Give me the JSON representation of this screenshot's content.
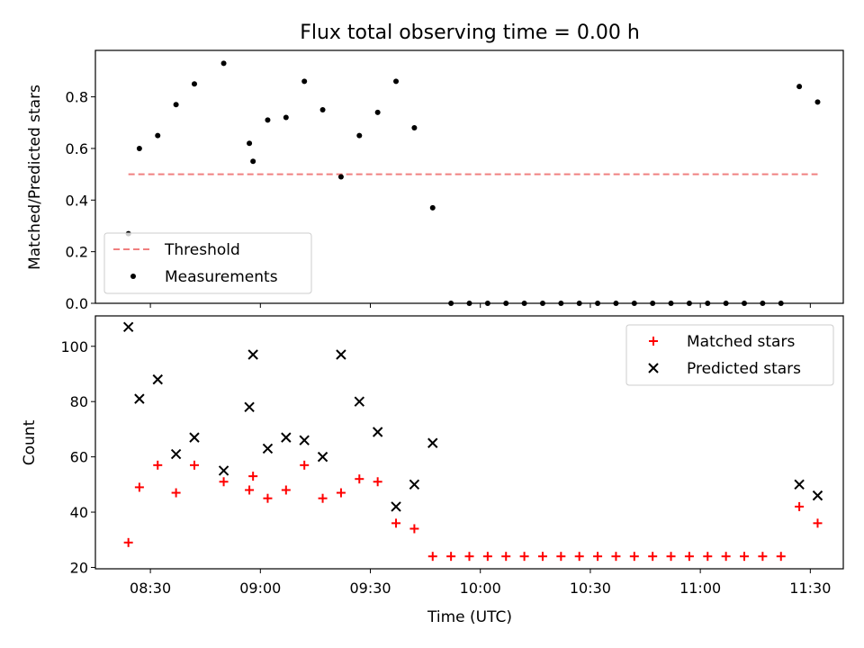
{
  "title": "Flux total observing time = 0.00 h",
  "colors": {
    "threshold": "#f08080",
    "matched": "#ff0000",
    "predicted": "#000000",
    "measurement": "#000000"
  },
  "chart_data": [
    {
      "type": "scatter",
      "ylabel": "Matched/Predicted stars",
      "xlabel": "",
      "ylim": [
        0,
        0.98
      ],
      "xlim": [
        "08:15",
        "11:39"
      ],
      "yticks": [
        "0.0",
        "0.2",
        "0.4",
        "0.6",
        "0.8"
      ],
      "grid": false,
      "legend_position": "lower-left",
      "threshold": {
        "name": "Threshold",
        "y": 0.5,
        "x_start": "08:24",
        "x_end": "11:32",
        "style": "dashed"
      },
      "series": [
        {
          "name": "Measurements",
          "marker": "dot",
          "x": [
            "08:24",
            "08:27",
            "08:32",
            "08:37",
            "08:42",
            "08:50",
            "08:57",
            "08:58",
            "09:02",
            "09:07",
            "09:12",
            "09:17",
            "09:22",
            "09:27",
            "09:32",
            "09:37",
            "09:42",
            "09:47",
            "09:52",
            "09:57",
            "10:02",
            "10:07",
            "10:12",
            "10:17",
            "10:22",
            "10:27",
            "10:32",
            "10:37",
            "10:42",
            "10:47",
            "10:52",
            "10:57",
            "11:02",
            "11:07",
            "11:12",
            "11:17",
            "11:22",
            "11:27",
            "11:32"
          ],
          "y": [
            0.27,
            0.6,
            0.65,
            0.77,
            0.85,
            0.93,
            0.62,
            0.55,
            0.71,
            0.72,
            0.86,
            0.75,
            0.49,
            0.65,
            0.74,
            0.86,
            0.68,
            0.37,
            0,
            0,
            0,
            0,
            0,
            0,
            0,
            0,
            0,
            0,
            0,
            0,
            0,
            0,
            0,
            0,
            0,
            0,
            0,
            0.84,
            0.78
          ]
        }
      ]
    },
    {
      "type": "scatter",
      "ylabel": "Count",
      "xlabel": "Time (UTC)",
      "ylim": [
        19.5,
        111
      ],
      "xlim": [
        "08:15",
        "11:39"
      ],
      "yticks": [
        "20",
        "40",
        "60",
        "80",
        "100"
      ],
      "xticks": [
        "08:30",
        "09:00",
        "09:30",
        "10:00",
        "10:30",
        "11:00",
        "11:30"
      ],
      "grid": false,
      "legend_position": "upper-right",
      "series": [
        {
          "name": "Matched stars",
          "marker": "plus",
          "x": [
            "08:24",
            "08:27",
            "08:32",
            "08:37",
            "08:42",
            "08:50",
            "08:57",
            "08:58",
            "09:02",
            "09:07",
            "09:12",
            "09:17",
            "09:22",
            "09:27",
            "09:32",
            "09:37",
            "09:42",
            "09:47",
            "09:52",
            "09:57",
            "10:02",
            "10:07",
            "10:12",
            "10:17",
            "10:22",
            "10:27",
            "10:32",
            "10:37",
            "10:42",
            "10:47",
            "10:52",
            "10:57",
            "11:02",
            "11:07",
            "11:12",
            "11:17",
            "11:22",
            "11:27",
            "11:32"
          ],
          "y": [
            29,
            49,
            57,
            47,
            57,
            51,
            48,
            53,
            45,
            48,
            57,
            45,
            47,
            52,
            51,
            36,
            34,
            24,
            24,
            24,
            24,
            24,
            24,
            24,
            24,
            24,
            24,
            24,
            24,
            24,
            24,
            24,
            24,
            24,
            24,
            24,
            24,
            42,
            36
          ]
        },
        {
          "name": "Predicted stars",
          "marker": "x",
          "x": [
            "08:24",
            "08:27",
            "08:32",
            "08:37",
            "08:42",
            "08:50",
            "08:57",
            "08:58",
            "09:02",
            "09:07",
            "09:12",
            "09:17",
            "09:22",
            "09:27",
            "09:32",
            "09:37",
            "09:42",
            "09:47",
            "11:27",
            "11:32"
          ],
          "y": [
            107,
            81,
            88,
            61,
            67,
            55,
            78,
            97,
            63,
            67,
            66,
            60,
            97,
            80,
            69,
            42,
            50,
            65,
            50,
            46
          ]
        }
      ]
    }
  ]
}
